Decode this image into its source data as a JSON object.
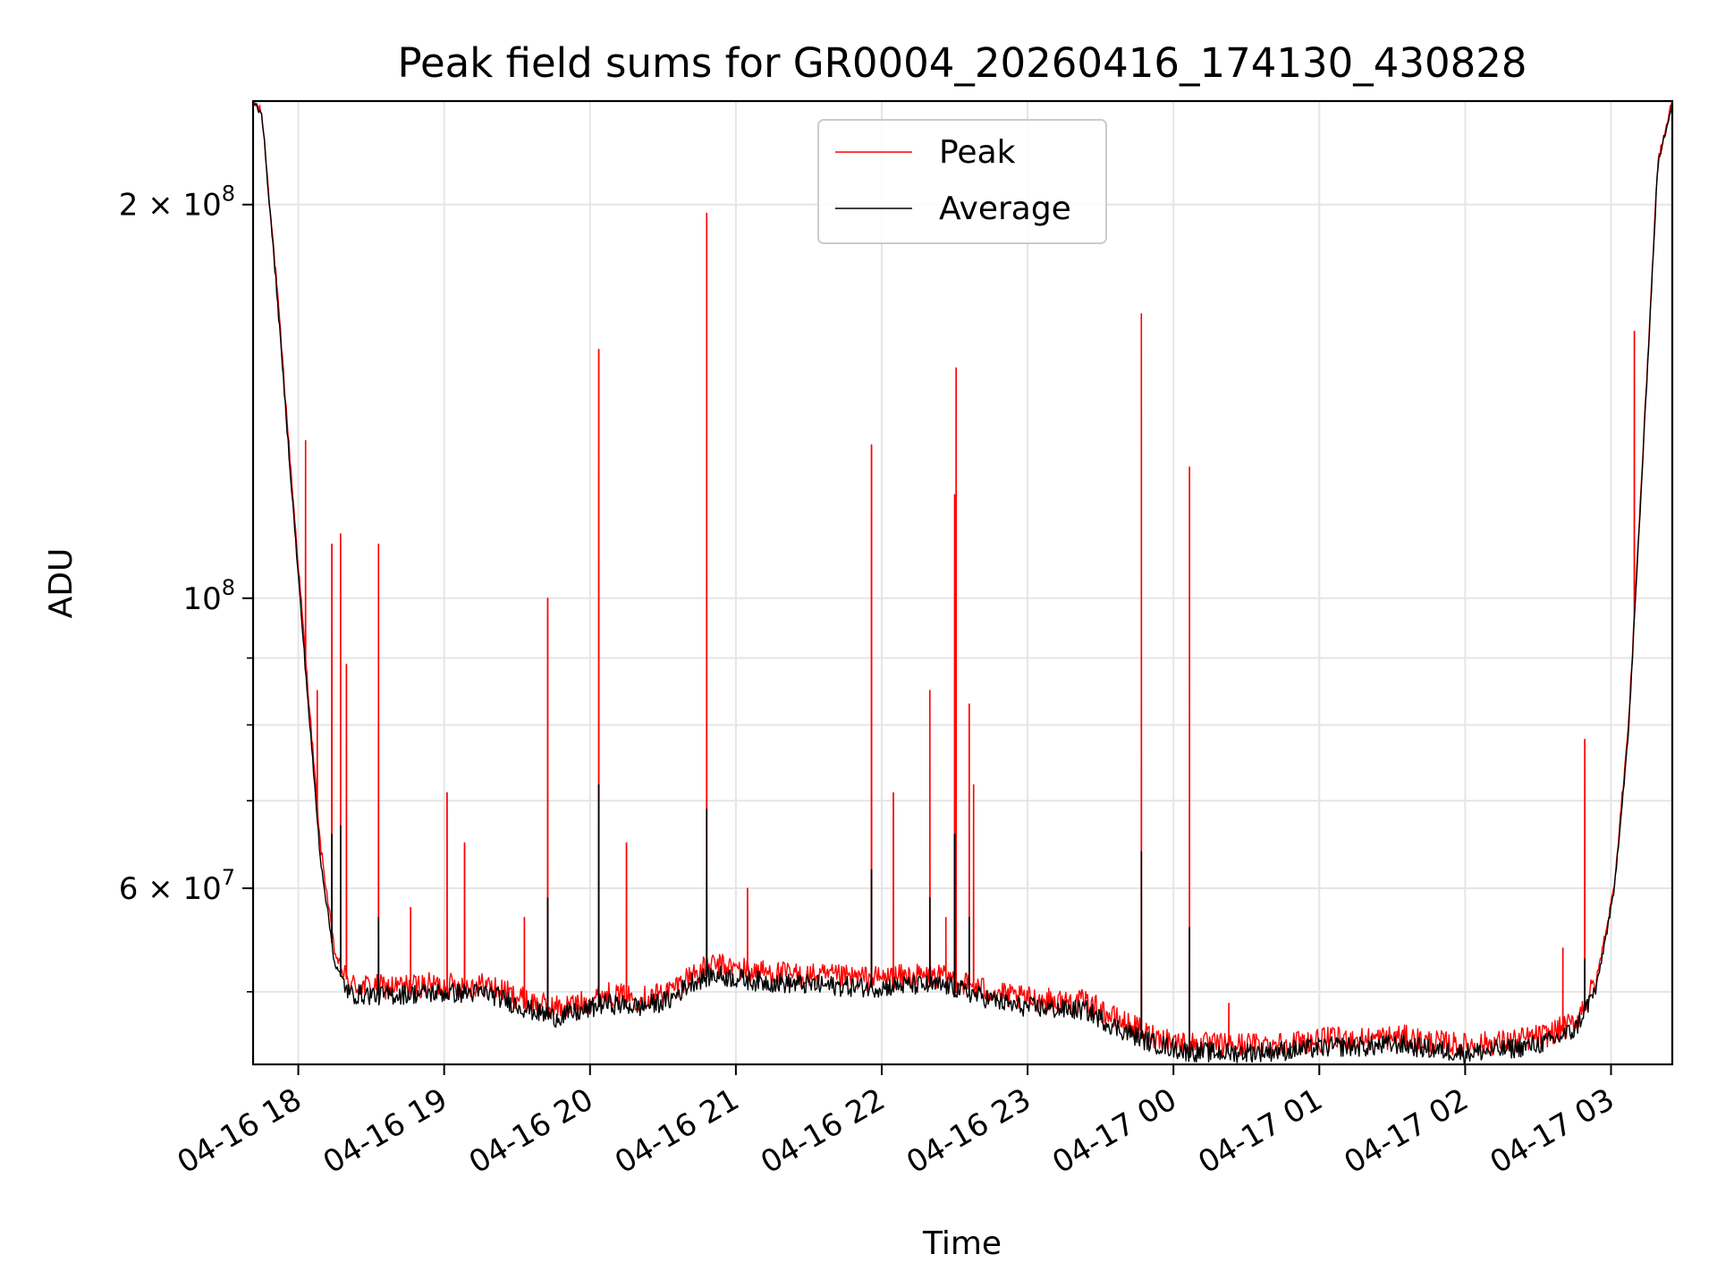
{
  "chart_data": {
    "type": "line",
    "title": "Peak field sums for GR0004_20260416_174130_430828",
    "xlabel": "Time",
    "ylabel": "ADU",
    "yscale": "log",
    "ylim": [
      44000000,
      240000000
    ],
    "xlim_hours": [
      17.69,
      27.42
    ],
    "grid": true,
    "legend_position": "upper-center",
    "x_ticks": [
      {
        "hour": 18,
        "label": "04-16 18"
      },
      {
        "hour": 19,
        "label": "04-16 19"
      },
      {
        "hour": 20,
        "label": "04-16 20"
      },
      {
        "hour": 21,
        "label": "04-16 21"
      },
      {
        "hour": 22,
        "label": "04-16 22"
      },
      {
        "hour": 23,
        "label": "04-16 23"
      },
      {
        "hour": 24,
        "label": "04-17 00"
      },
      {
        "hour": 25,
        "label": "04-17 01"
      },
      {
        "hour": 26,
        "label": "04-17 02"
      },
      {
        "hour": 27,
        "label": "04-17 03"
      }
    ],
    "y_major_ticks": [
      {
        "value": 200000000,
        "mantissa": "2",
        "exp": "8"
      },
      {
        "value": 100000000,
        "mantissa": "",
        "exp": "8"
      },
      {
        "value": 60000000,
        "mantissa": "6",
        "exp": "7"
      }
    ],
    "y_minor_ticks": [
      50000000,
      70000000,
      80000000,
      90000000
    ],
    "series": [
      {
        "name": "Peak",
        "color": "#ff0000",
        "baseline": [
          [
            17.69,
            240000000
          ],
          [
            17.75,
            235000000
          ],
          [
            17.85,
            175000000
          ],
          [
            17.95,
            125000000
          ],
          [
            18.05,
            90000000
          ],
          [
            18.15,
            65000000
          ],
          [
            18.25,
            53500000
          ],
          [
            18.35,
            50600000
          ],
          [
            18.6,
            50400000
          ],
          [
            18.9,
            50600000
          ],
          [
            19.3,
            50600000
          ],
          [
            19.55,
            49300000
          ],
          [
            19.75,
            48600000
          ],
          [
            19.95,
            49000000
          ],
          [
            20.1,
            49800000
          ],
          [
            20.35,
            49400000
          ],
          [
            20.55,
            50100000
          ],
          [
            20.7,
            51600000
          ],
          [
            20.85,
            52400000
          ],
          [
            21.1,
            51900000
          ],
          [
            21.4,
            51500000
          ],
          [
            21.7,
            51300000
          ],
          [
            21.95,
            51200000
          ],
          [
            22.2,
            51400000
          ],
          [
            22.45,
            51300000
          ],
          [
            22.65,
            50400000
          ],
          [
            22.9,
            49500000
          ],
          [
            23.2,
            49200000
          ],
          [
            23.4,
            49100000
          ],
          [
            23.6,
            47700000
          ],
          [
            23.85,
            46300000
          ],
          [
            24.1,
            45600000
          ],
          [
            24.4,
            45500000
          ],
          [
            24.8,
            45700000
          ],
          [
            25.1,
            46000000
          ],
          [
            25.35,
            46000000
          ],
          [
            25.55,
            46200000
          ],
          [
            25.75,
            45800000
          ],
          [
            26.0,
            45500000
          ],
          [
            26.3,
            45800000
          ],
          [
            26.55,
            46300000
          ],
          [
            26.75,
            47300000
          ],
          [
            26.9,
            51000000
          ],
          [
            27.02,
            60000000
          ],
          [
            27.12,
            80000000
          ],
          [
            27.22,
            130000000
          ],
          [
            27.32,
            215000000
          ],
          [
            27.42,
            240000000
          ]
        ],
        "spikes": [
          [
            18.05,
            132000000
          ],
          [
            18.13,
            85000000
          ],
          [
            18.23,
            110000000
          ],
          [
            18.29,
            112000000
          ],
          [
            18.33,
            89000000
          ],
          [
            18.55,
            110000000
          ],
          [
            18.77,
            58000000
          ],
          [
            19.02,
            71000000
          ],
          [
            19.14,
            65000000
          ],
          [
            19.55,
            57000000
          ],
          [
            19.71,
            100000000
          ],
          [
            20.06,
            155000000
          ],
          [
            20.25,
            65000000
          ],
          [
            20.8,
            197000000
          ],
          [
            21.08,
            60000000
          ],
          [
            21.93,
            131000000
          ],
          [
            22.08,
            71000000
          ],
          [
            22.33,
            85000000
          ],
          [
            22.44,
            57000000
          ],
          [
            22.5,
            120000000
          ],
          [
            22.51,
            150000000
          ],
          [
            22.6,
            83000000
          ],
          [
            22.63,
            72000000
          ],
          [
            23.78,
            165000000
          ],
          [
            24.11,
            126000000
          ],
          [
            24.38,
            49000000
          ],
          [
            26.67,
            54000000
          ],
          [
            26.82,
            78000000
          ],
          [
            27.16,
            160000000
          ]
        ]
      },
      {
        "name": "Average",
        "color": "#000000",
        "baseline": [
          [
            17.69,
            240000000
          ],
          [
            17.75,
            235000000
          ],
          [
            17.85,
            173000000
          ],
          [
            17.95,
            123000000
          ],
          [
            18.05,
            88000000
          ],
          [
            18.15,
            63500000
          ],
          [
            18.25,
            52500000
          ],
          [
            18.35,
            49800000
          ],
          [
            18.6,
            49700000
          ],
          [
            18.9,
            49900000
          ],
          [
            19.3,
            49900000
          ],
          [
            19.55,
            48600000
          ],
          [
            19.75,
            47800000
          ],
          [
            19.95,
            48300000
          ],
          [
            20.1,
            49000000
          ],
          [
            20.35,
            48700000
          ],
          [
            20.55,
            49300000
          ],
          [
            20.7,
            50900000
          ],
          [
            20.85,
            51500000
          ],
          [
            21.1,
            51000000
          ],
          [
            21.4,
            50700000
          ],
          [
            21.7,
            50500000
          ],
          [
            21.95,
            50400000
          ],
          [
            22.2,
            50600000
          ],
          [
            22.45,
            50500000
          ],
          [
            22.65,
            49700000
          ],
          [
            22.9,
            48800000
          ],
          [
            23.2,
            48500000
          ],
          [
            23.4,
            48400000
          ],
          [
            23.6,
            47000000
          ],
          [
            23.85,
            45700000
          ],
          [
            24.1,
            45000000
          ],
          [
            24.4,
            44900000
          ],
          [
            24.8,
            45100000
          ],
          [
            25.1,
            45400000
          ],
          [
            25.35,
            45400000
          ],
          [
            25.55,
            45600000
          ],
          [
            25.75,
            45200000
          ],
          [
            26.0,
            44900000
          ],
          [
            26.3,
            45200000
          ],
          [
            26.55,
            45700000
          ],
          [
            26.75,
            46700000
          ],
          [
            26.9,
            50400000
          ],
          [
            27.02,
            59500000
          ],
          [
            27.12,
            79000000
          ],
          [
            27.22,
            129000000
          ],
          [
            27.32,
            214000000
          ],
          [
            27.42,
            240000000
          ]
        ],
        "spikes": [
          [
            18.23,
            66000000
          ],
          [
            18.29,
            67000000
          ],
          [
            18.55,
            57000000
          ],
          [
            19.71,
            59000000
          ],
          [
            20.06,
            72000000
          ],
          [
            20.8,
            69000000
          ],
          [
            21.93,
            62000000
          ],
          [
            22.33,
            59000000
          ],
          [
            22.5,
            66000000
          ],
          [
            22.6,
            57000000
          ],
          [
            23.78,
            64000000
          ],
          [
            24.11,
            56000000
          ],
          [
            26.82,
            53000000
          ]
        ]
      }
    ]
  }
}
